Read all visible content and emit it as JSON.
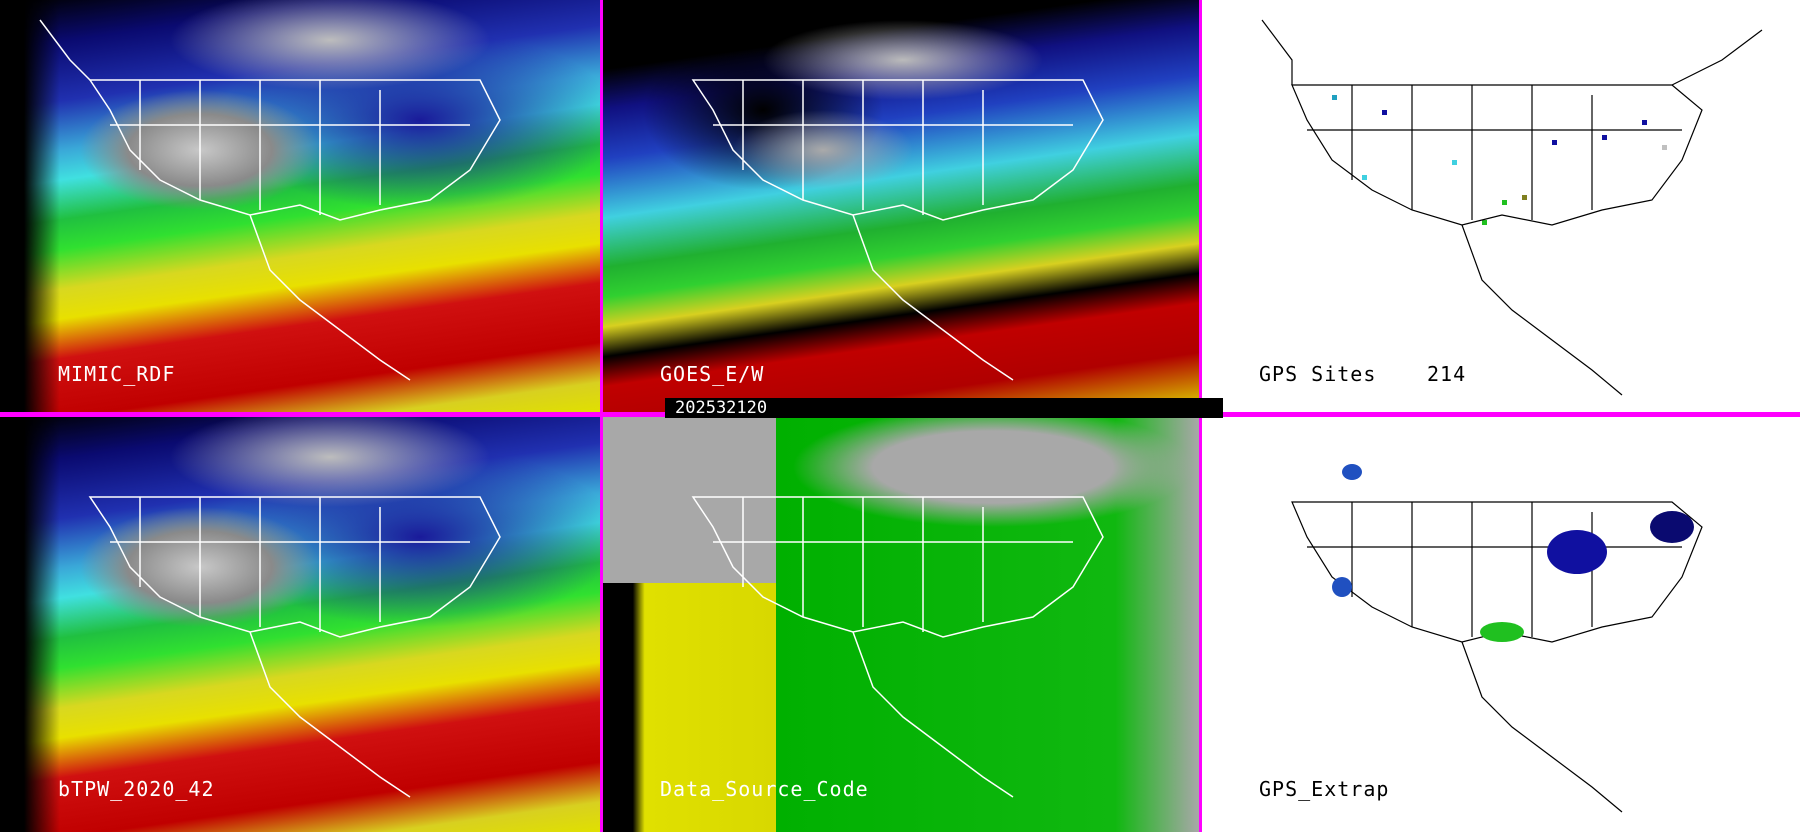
{
  "panels": {
    "top_left": {
      "label": "MIMIC_RDF"
    },
    "top_middle": {
      "label": "GOES_E/W"
    },
    "top_right": {
      "label": "GPS Sites",
      "count": "214"
    },
    "bottom_left": {
      "label": "bTPW_2020_42"
    },
    "bottom_middle": {
      "label": "Data_Source_Code"
    },
    "bottom_right": {
      "label": "GPS_Extrap"
    }
  },
  "timestamp": "202532120",
  "colors": {
    "divider": "#ff00ff",
    "map_outline_dark": "#ffffff",
    "map_outline_light": "#000000"
  },
  "gps_site_colors": [
    "#1010a0",
    "#20a0c0",
    "#40d0e0",
    "#20c020",
    "#808020",
    "#c0c0c0"
  ]
}
